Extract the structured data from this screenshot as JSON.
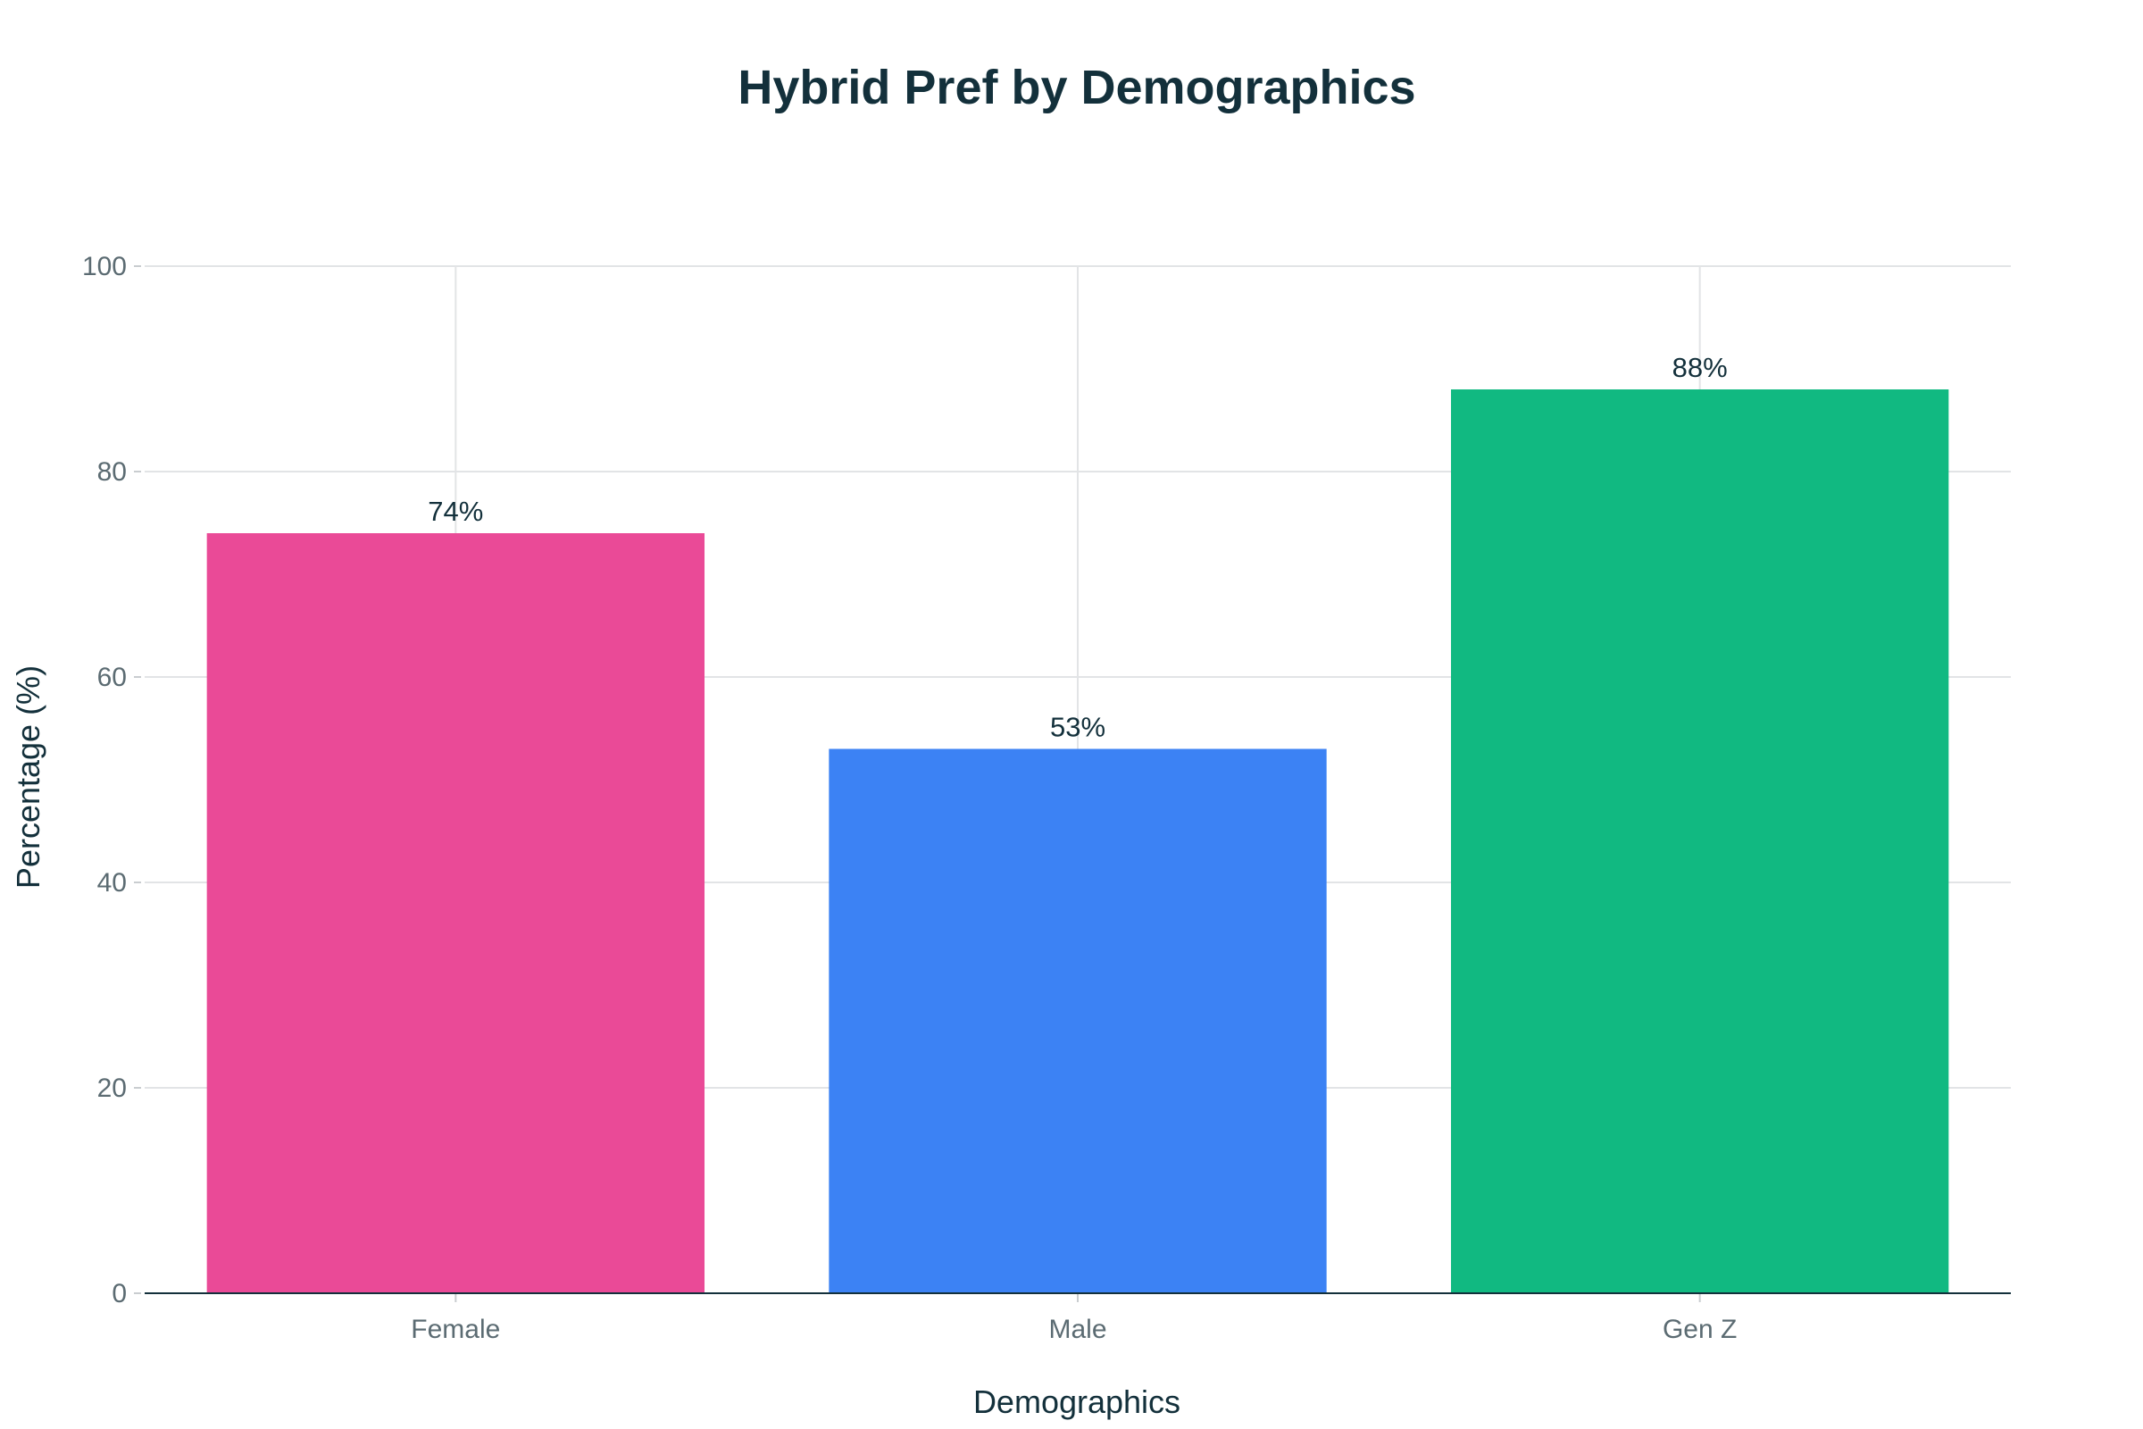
{
  "chart_data": {
    "type": "bar",
    "title": "Hybrid Pref by Demographics",
    "xlabel": "Demographics",
    "ylabel": "Percentage (%)",
    "categories": [
      "Female",
      "Male",
      "Gen Z"
    ],
    "values": [
      74,
      53,
      88
    ],
    "data_labels": [
      "74%",
      "53%",
      "88%"
    ],
    "colors": [
      "#ea4a97",
      "#3c82f4",
      "#11b981"
    ],
    "ylim": [
      0,
      100
    ],
    "yticks": [
      0,
      20,
      40,
      60,
      80,
      100
    ],
    "ytick_labels": [
      "0",
      "20",
      "40",
      "60",
      "80",
      "100"
    ],
    "grid": true,
    "legend": "none"
  }
}
